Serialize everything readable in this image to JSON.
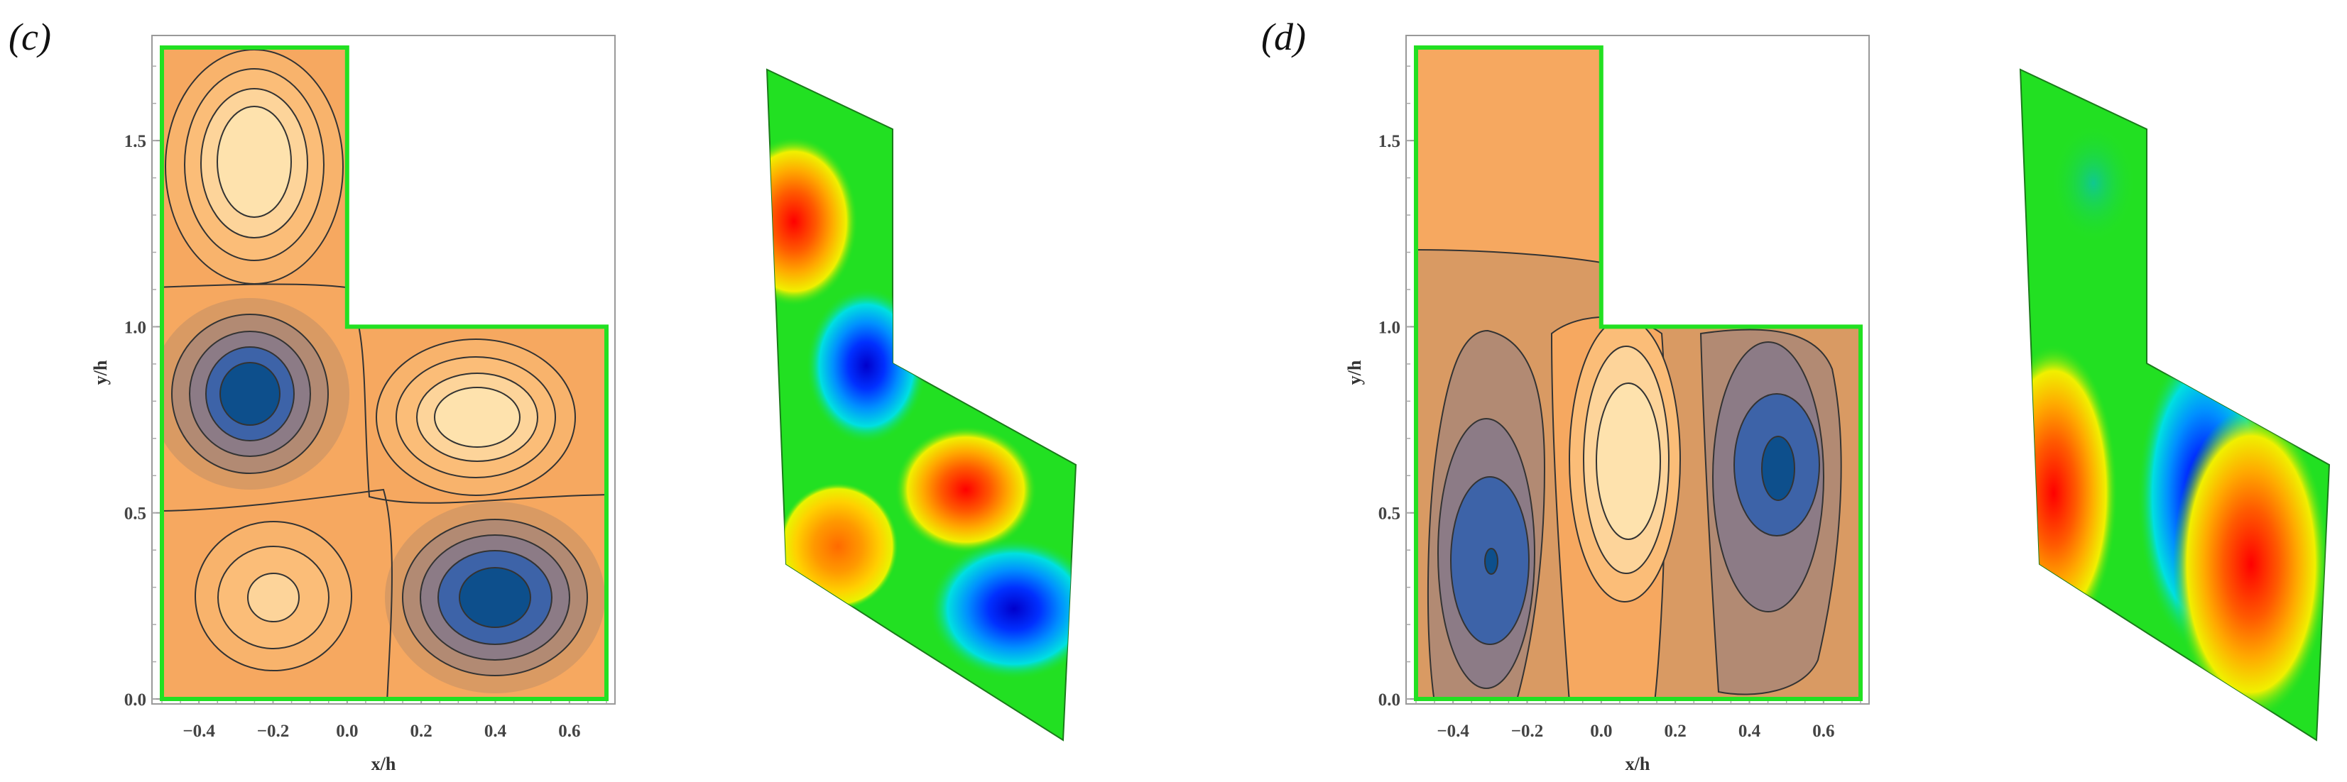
{
  "chart_data": [
    {
      "type": "contour",
      "panel_label": "(c)",
      "xlabel": "x/h",
      "ylabel": "y/h",
      "xlim": [
        -0.5,
        0.7
      ],
      "ylim": [
        0.0,
        1.75
      ],
      "xticks": [
        "-0.4",
        "-0.2",
        "0.0",
        "0.2",
        "0.4",
        "0.6"
      ],
      "yticks": [
        "0.0",
        "0.5",
        "1.0",
        "1.5"
      ],
      "domain_outline": [
        [
          -0.5,
          0.0
        ],
        [
          0.7,
          0.0
        ],
        [
          0.7,
          1.0
        ],
        [
          0.0,
          1.0
        ],
        [
          0.0,
          1.75
        ],
        [
          -0.5,
          1.75
        ]
      ],
      "cells": [
        {
          "x": -0.25,
          "y": 1.43,
          "sign": "positive"
        },
        {
          "x": -0.22,
          "y": 0.82,
          "sign": "negative"
        },
        {
          "x": 0.35,
          "y": 0.74,
          "sign": "positive"
        },
        {
          "x": -0.22,
          "y": 0.27,
          "sign": "positive"
        },
        {
          "x": 0.4,
          "y": 0.26,
          "sign": "negative"
        }
      ],
      "surface_view": "3D shaded surface of the same mode"
    },
    {
      "type": "contour",
      "panel_label": "(d)",
      "xlabel": "x/h",
      "ylabel": "y/h",
      "xlim": [
        -0.5,
        0.7
      ],
      "ylim": [
        0.0,
        1.75
      ],
      "xticks": [
        "-0.4",
        "-0.2",
        "0.0",
        "0.2",
        "0.4",
        "0.6"
      ],
      "yticks": [
        "0.0",
        "0.5",
        "1.0",
        "1.5"
      ],
      "domain_outline": [
        [
          -0.5,
          0.0
        ],
        [
          0.7,
          0.0
        ],
        [
          0.7,
          1.0
        ],
        [
          0.0,
          1.0
        ],
        [
          0.0,
          1.75
        ],
        [
          -0.5,
          1.75
        ]
      ],
      "cells": [
        {
          "x": -0.3,
          "y": 0.36,
          "sign": "negative"
        },
        {
          "x": 0.08,
          "y": 0.55,
          "sign": "positive"
        },
        {
          "x": 0.49,
          "y": 0.62,
          "sign": "negative"
        }
      ],
      "surface_view": "3D shaded surface of the same mode"
    }
  ],
  "colors": {
    "outline": "#22e022",
    "contour_line": "#333333",
    "neg_levels": [
      "#d99a63",
      "#b28a73",
      "#8c7b86",
      "#6c6f9e",
      "#3d63a8",
      "#0d4f8c"
    ],
    "pos_levels": [
      "#f6a860",
      "#f8b36c",
      "#fbbd78",
      "#fcc888",
      "#fdd49a",
      "#fee2ad"
    ],
    "surface_base": "#22e022"
  }
}
